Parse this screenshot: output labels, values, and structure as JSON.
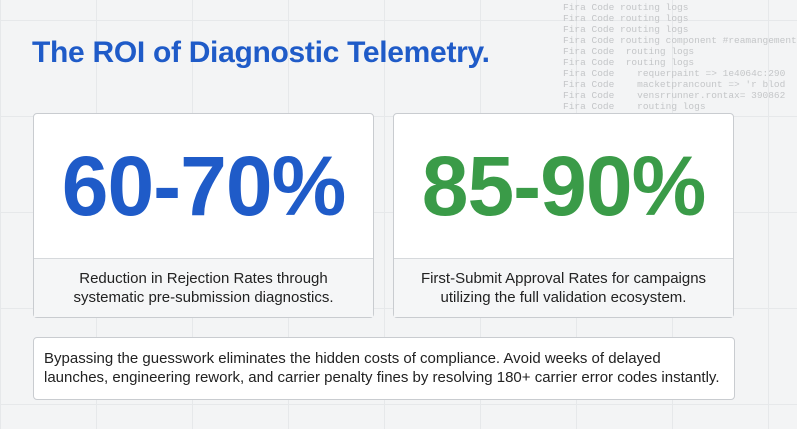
{
  "header": {
    "title": "The ROI of Diagnostic Telemetry."
  },
  "background_code": [
    "Fira Code routing logs",
    "Fira Code routing logs",
    "Fira Code routing logs",
    "Fira Code routing component #reamangement",
    "Fira Code  routing logs",
    "Fira Code  routing logs",
    "Fira Code    requerpaint => 1e4064c:290",
    "Fira Code    macketprancount => 'r blod",
    "Fira Code    vensrrunner.rontax= 390862",
    "Fira Code    routing logs"
  ],
  "cards": [
    {
      "stat": "60-70%",
      "caption": [
        "Reduction in Rejection Rates through",
        "systematic pre-submission diagnostics."
      ]
    },
    {
      "stat": "85-90%",
      "caption": [
        "First-Submit Approval Rates for campaigns",
        "utilizing the full validation ecosystem."
      ]
    }
  ],
  "footer": {
    "lines": [
      "Bypassing the guesswork eliminates the hidden costs of compliance. Avoid weeks of delayed",
      "launches, engineering rework, and carrier penalty fines by resolving 180+ carrier error codes instantly."
    ]
  }
}
